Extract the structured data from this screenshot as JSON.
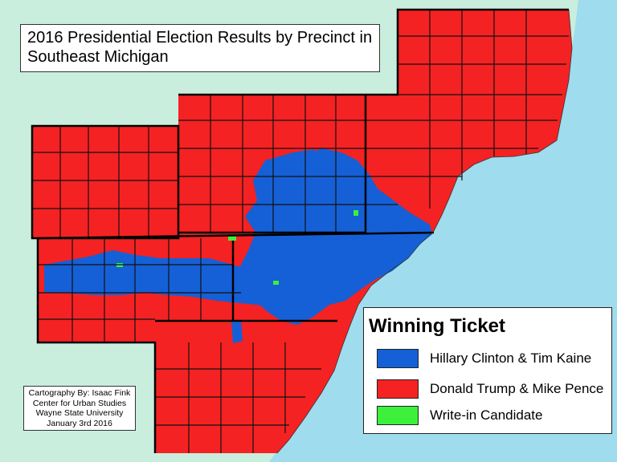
{
  "title": {
    "line1": "2016 Presidential Election Results by Precinct in",
    "line2": "Southeast Michigan"
  },
  "credit": {
    "line1": "Cartography By: Isaac Fink",
    "line2": "Center for Urban Studies",
    "line3": "Wayne State University",
    "line4": "January 3rd 2016"
  },
  "legend": {
    "title": "Winning Ticket",
    "items": [
      {
        "label": "Hillary Clinton & Tim Kaine",
        "color": "#1560d6"
      },
      {
        "label": "Donald Trump & Mike Pence",
        "color": "#f42222"
      },
      {
        "label": "Write-in Candidate",
        "color": "#3cf03c"
      }
    ]
  },
  "colors": {
    "land_background": "#c9eedd",
    "water": "#9edcee",
    "democrat": "#1560d6",
    "republican": "#f42222",
    "write_in": "#3cf03c",
    "county_border": "#111111",
    "precinct_border": "#555555"
  }
}
